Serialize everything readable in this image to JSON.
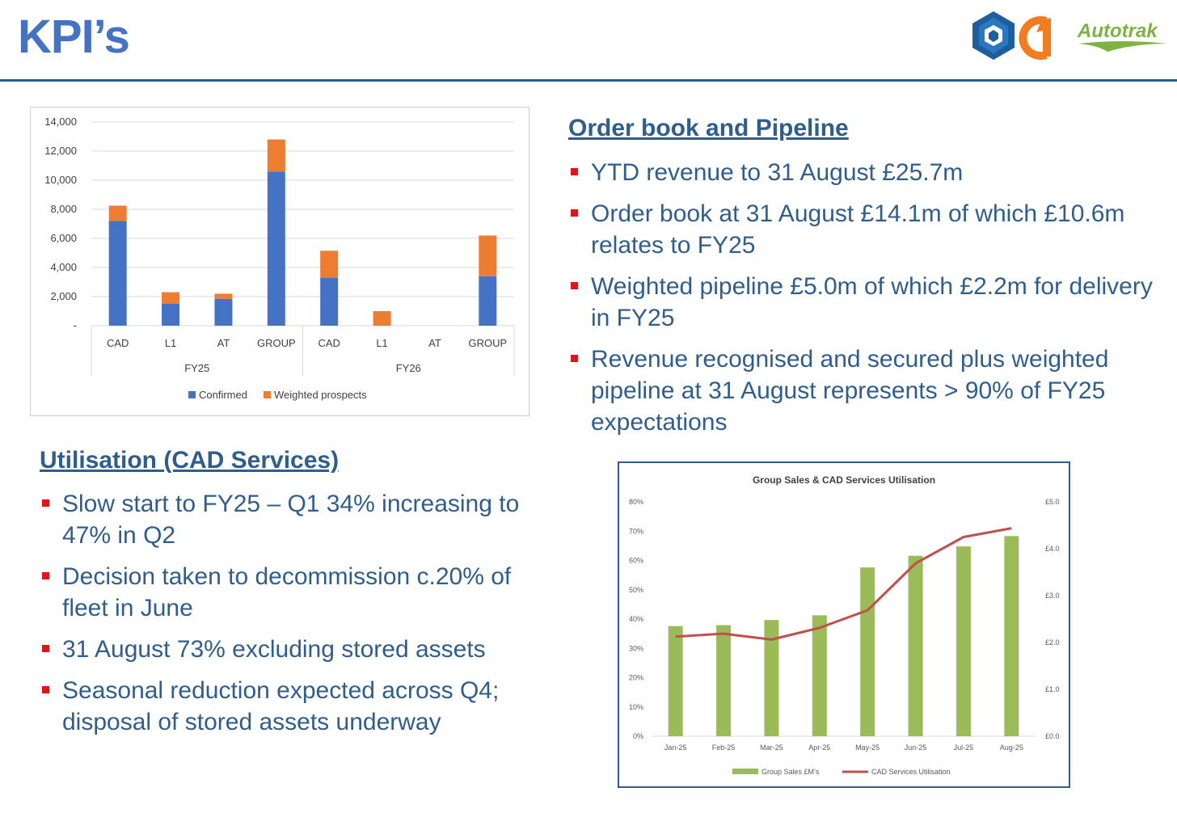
{
  "title": "KPI’s",
  "logos": {
    "brand_text": "Autotrak",
    "icons": [
      "hexagon-cube-logo-icon",
      "orange-one-logo-icon",
      "autotrak-swoosh-icon"
    ],
    "colors": {
      "hex_blue": "#1f5e9c",
      "orange": "#f47c20",
      "green": "#7cb342"
    }
  },
  "order_book": {
    "heading": "Order book and Pipeline",
    "bullets": [
      "YTD revenue to 31 August £25.7m",
      "Order book at 31 August £14.1m of which £10.6m relates to FY25",
      "Weighted pipeline £5.0m of which £2.2m for delivery in FY25",
      "Revenue recognised and secured plus weighted pipeline at 31 August represents > 90% of FY25 expectations"
    ]
  },
  "utilisation": {
    "heading": "Utilisation (CAD Services)",
    "bullets": [
      "Slow start to FY25 – Q1 34% increasing to 47% in Q2",
      "Decision taken to decommission c.20% of fleet in June",
      "31 August 73% excluding stored assets",
      "Seasonal reduction expected across Q4; disposal of stored assets underway"
    ]
  },
  "colors": {
    "title_blue": "#4472c4",
    "text_blue": "#2f5d8c",
    "bullet_red": "#e0141b",
    "confirmed": "#4472c4",
    "weighted": "#ed7d31",
    "sales_green": "#9bbb59",
    "util_red": "#c0504d"
  },
  "chart_data": [
    {
      "type": "bar",
      "stacked": true,
      "title": "",
      "groups": [
        "FY25",
        "FY26"
      ],
      "categories": [
        "CAD",
        "L1",
        "AT",
        "GROUP",
        "CAD",
        "L1",
        "AT",
        "GROUP"
      ],
      "category_groups": [
        "FY25",
        "FY25",
        "FY25",
        "FY25",
        "FY26",
        "FY26",
        "FY26",
        "FY26"
      ],
      "series": [
        {
          "name": "Confirmed",
          "values": [
            7200,
            1500,
            1850,
            10600,
            3300,
            0,
            0,
            3400
          ]
        },
        {
          "name": "Weighted prospects",
          "values": [
            1050,
            800,
            350,
            2200,
            1850,
            1000,
            0,
            2800
          ]
        }
      ],
      "ylim": [
        0,
        14000
      ],
      "yticks": [
        0,
        2000,
        4000,
        6000,
        8000,
        10000,
        12000,
        14000
      ],
      "ytick_labels": [
        "-",
        "2,000",
        "4,000",
        "6,000",
        "8,000",
        "10,000",
        "12,000",
        "14,000"
      ],
      "legend_position": "bottom",
      "grid": true
    },
    {
      "type": "bar+line",
      "title": "Group Sales & CAD Services Utilisation",
      "categories": [
        "Jan-25",
        "Feb-25",
        "Mar-25",
        "Apr-25",
        "May-25",
        "Jun-25",
        "Jul-25",
        "Aug-25"
      ],
      "series": [
        {
          "name": "Group Sales £M’s",
          "type": "bar",
          "axis": "right",
          "values": [
            2.35,
            2.37,
            2.48,
            2.58,
            3.6,
            3.85,
            4.05,
            4.27
          ]
        },
        {
          "name": "CAD Services Utilisation",
          "type": "line",
          "axis": "left",
          "values": [
            0.34,
            0.35,
            0.33,
            0.37,
            0.43,
            0.59,
            0.68,
            0.71
          ]
        }
      ],
      "left_axis": {
        "ylim": [
          0,
          0.8
        ],
        "ticks": [
          "0%",
          "10%",
          "20%",
          "30%",
          "40%",
          "50%",
          "60%",
          "70%",
          "80%"
        ]
      },
      "right_axis": {
        "ylim": [
          0,
          5
        ],
        "ticks": [
          "£0.0",
          "£1.0",
          "£2.0",
          "£3.0",
          "£4.0",
          "£5.0"
        ]
      },
      "legend_position": "bottom",
      "grid": false
    }
  ]
}
